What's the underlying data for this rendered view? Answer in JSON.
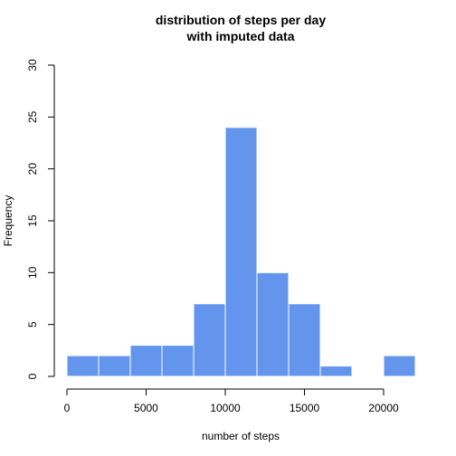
{
  "chart_data": {
    "type": "bar",
    "title_line1": "distribution of steps per day",
    "title_line2": "with imputed data",
    "xlabel": "number of steps",
    "ylabel": "Frequency",
    "bar_color": "#6495ED",
    "bar_border_color": "#ffffff",
    "bin_width": 2000,
    "bins": [
      {
        "start": 0,
        "end": 2000,
        "count": 2
      },
      {
        "start": 2000,
        "end": 4000,
        "count": 2
      },
      {
        "start": 4000,
        "end": 6000,
        "count": 3
      },
      {
        "start": 6000,
        "end": 8000,
        "count": 3
      },
      {
        "start": 8000,
        "end": 10000,
        "count": 7
      },
      {
        "start": 10000,
        "end": 12000,
        "count": 24
      },
      {
        "start": 12000,
        "end": 14000,
        "count": 10
      },
      {
        "start": 14000,
        "end": 16000,
        "count": 7
      },
      {
        "start": 16000,
        "end": 18000,
        "count": 1
      },
      {
        "start": 18000,
        "end": 20000,
        "count": 0
      },
      {
        "start": 20000,
        "end": 22000,
        "count": 2
      }
    ],
    "xlim": [
      0,
      22000
    ],
    "ylim": [
      0,
      30
    ],
    "x_ticks": [
      0,
      5000,
      10000,
      15000,
      20000
    ],
    "y_ticks": [
      0,
      5,
      10,
      15,
      20,
      25,
      30
    ],
    "grid": false
  }
}
